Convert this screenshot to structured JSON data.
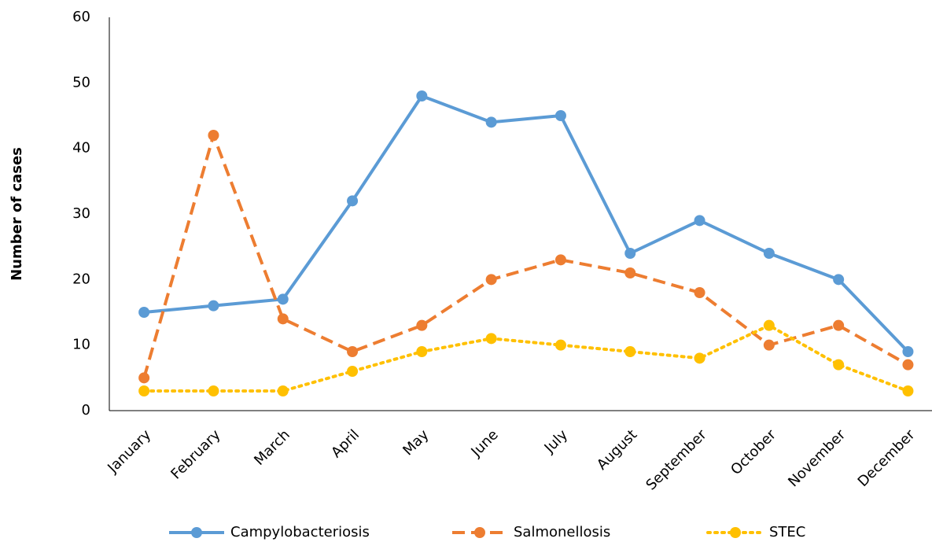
{
  "chart_data": {
    "type": "line",
    "y_label": "Number of cases",
    "categories": [
      "January",
      "February",
      "March",
      "April",
      "May",
      "June",
      "July",
      "August",
      "September",
      "October",
      "November",
      "December"
    ],
    "series": [
      {
        "name": "Campylobacteriosis",
        "color": "#5b9bd5",
        "line_style": "solid",
        "values": [
          15,
          16,
          17,
          32,
          48,
          44,
          45,
          24,
          29,
          24,
          20,
          9
        ]
      },
      {
        "name": "Salmonellosis",
        "color": "#ed7d31",
        "line_style": "dashed",
        "values": [
          5,
          42,
          14,
          9,
          13,
          20,
          23,
          21,
          18,
          10,
          13,
          7
        ]
      },
      {
        "name": "STEC",
        "color": "#ffc000",
        "line_style": "dotted",
        "values": [
          3,
          3,
          3,
          6,
          9,
          11,
          10,
          9,
          8,
          13,
          7,
          3
        ]
      }
    ],
    "ylim": [
      0,
      60
    ],
    "yticks": [
      0,
      10,
      20,
      30,
      40,
      50,
      60
    ],
    "grid": false,
    "legend": "bottom"
  }
}
